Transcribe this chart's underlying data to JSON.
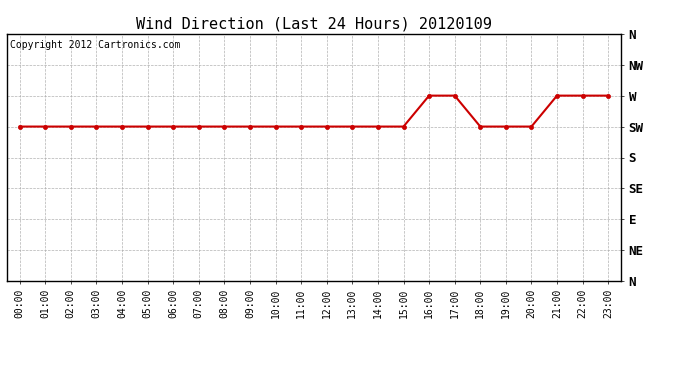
{
  "title": "Wind Direction (Last 24 Hours) 20120109",
  "copyright_text": "Copyright 2012 Cartronics.com",
  "x_labels": [
    "00:00",
    "01:00",
    "02:00",
    "03:00",
    "04:00",
    "05:00",
    "06:00",
    "07:00",
    "08:00",
    "09:00",
    "10:00",
    "11:00",
    "12:00",
    "13:00",
    "14:00",
    "15:00",
    "16:00",
    "17:00",
    "18:00",
    "19:00",
    "20:00",
    "21:00",
    "22:00",
    "23:00"
  ],
  "y_tick_positions": [
    8,
    7,
    6,
    5,
    4,
    3,
    2,
    1,
    0
  ],
  "y_tick_labels": [
    "N",
    "NW",
    "W",
    "SW",
    "S",
    "SE",
    "E",
    "NE",
    "N"
  ],
  "wind_data_y": [
    5,
    5,
    5,
    5,
    5,
    5,
    5,
    5,
    5,
    5,
    5,
    5,
    5,
    5,
    5,
    5,
    6,
    6,
    5,
    5,
    5,
    6,
    6,
    6
  ],
  "line_color": "#cc0000",
  "marker_size": 3,
  "bg_color": "#ffffff",
  "grid_color": "#aaaaaa",
  "title_fontsize": 11,
  "copyright_fontsize": 7,
  "tick_fontsize": 7,
  "ytick_fontsize": 9
}
